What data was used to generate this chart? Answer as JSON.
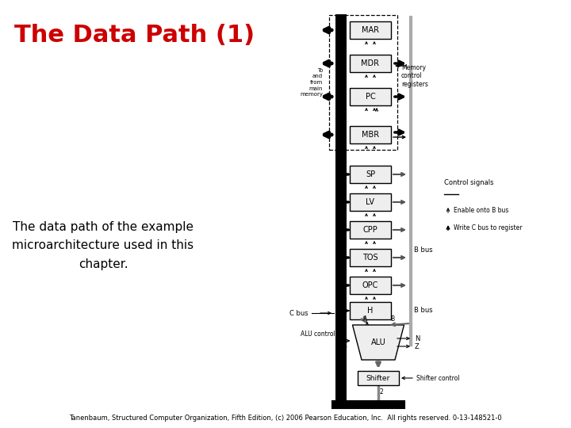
{
  "title": "The Data Path (1)",
  "title_color": "#CC0000",
  "title_fontsize": 22,
  "body_text": "The data path of the example\nmicroarchitecture used in this\nchapter.",
  "body_fontsize": 11,
  "footer": "Tanenbaum, Structured Computer Organization, Fifth Edition, (c) 2006 Pearson Education, Inc.  All rights reserved. 0-13-148521-0",
  "footer_fontsize": 6,
  "background_color": "#ffffff",
  "registers": [
    "MAR",
    "MDR",
    "PC",
    "MBR",
    "SP",
    "LV",
    "CPP",
    "TOS",
    "OPC"
  ]
}
